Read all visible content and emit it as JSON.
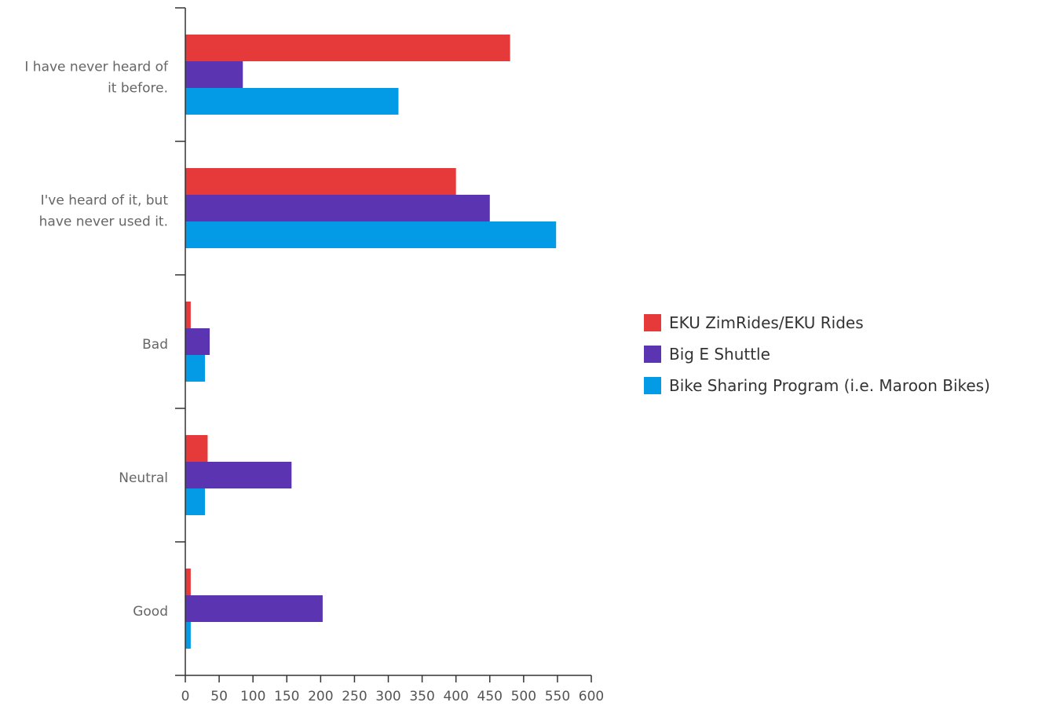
{
  "chart_data": {
    "type": "bar",
    "orientation": "horizontal",
    "categories": [
      [
        "I have never heard of",
        "it before."
      ],
      [
        "I've heard of it, but",
        "have never used it."
      ],
      [
        "Bad"
      ],
      [
        "Neutral"
      ],
      [
        "Good"
      ]
    ],
    "series": [
      {
        "name": "EKU ZimRides/EKU Rides",
        "color": "#e63a3a",
        "values": [
          480,
          400,
          8,
          33,
          8
        ]
      },
      {
        "name": "Big E Shuttle",
        "color": "#5b35b1",
        "values": [
          85,
          450,
          36,
          157,
          203
        ]
      },
      {
        "name": "Bike Sharing Program (i.e. Maroon Bikes)",
        "color": "#039be5",
        "values": [
          315,
          548,
          29,
          29,
          8
        ]
      }
    ],
    "xticks": [
      "0",
      "50",
      "100",
      "150",
      "200",
      "250",
      "300",
      "350",
      "400",
      "450",
      "500",
      "550",
      "600"
    ],
    "xlim": [
      0,
      600
    ],
    "legend_position": "right",
    "grid": false,
    "title": "",
    "xlabel": "",
    "ylabel": ""
  }
}
